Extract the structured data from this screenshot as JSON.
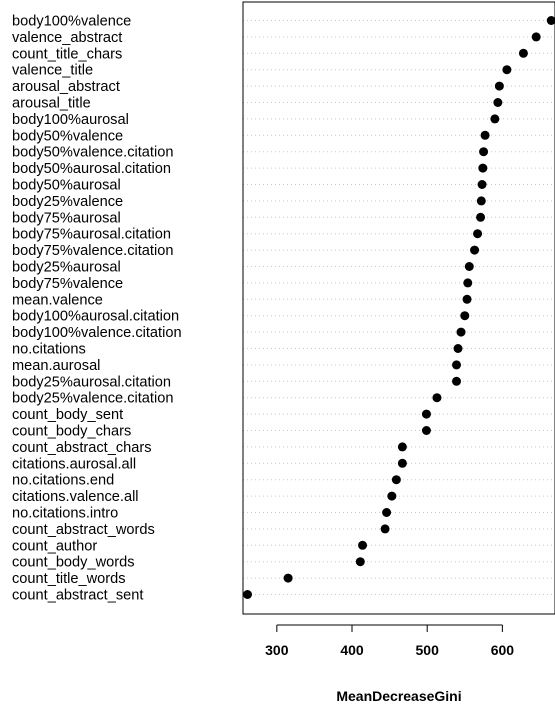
{
  "chart_data": {
    "type": "scatter",
    "xlabel": "MeanDecreaseGini",
    "ylabel": "",
    "xlim": [
      255,
      670
    ],
    "xticks": [
      300,
      400,
      500,
      600
    ],
    "grid": "dotted horizontal",
    "categories": [
      "body100%valence",
      "valence_abstract",
      "count_title_chars",
      "valence_title",
      "arousal_abstract",
      "arousal_title",
      "body100%aurosal",
      "body50%valence",
      "body50%valence.citation",
      "body50%aurosal.citation",
      "body50%aurosal",
      "body25%valence",
      "body75%aurosal",
      "body75%aurosal.citation",
      "body75%valence.citation",
      "body25%aurosal",
      "body75%valence",
      "mean.valence",
      "body100%aurosal.citation",
      "body100%valence.citation",
      "no.citations",
      "mean.aurosal",
      "body25%aurosal.citation",
      "body25%valence.citation",
      "count_body_sent",
      "count_body_chars",
      "count_abstract_chars",
      "citations.aurosal.all",
      "no.citations.end",
      "citations.valence.all",
      "no.citations.intro",
      "count_abstract_words",
      "count_author",
      "count_body_words",
      "count_title_words",
      "count_abstract_sent"
    ],
    "values": [
      665,
      645,
      628,
      606,
      596,
      594,
      590,
      577,
      575,
      574,
      573,
      572,
      571,
      567,
      563,
      556,
      554,
      553,
      550,
      545,
      541,
      539,
      539,
      513,
      499,
      499,
      467,
      467,
      459,
      453,
      446,
      444,
      414,
      411,
      315,
      261
    ]
  }
}
